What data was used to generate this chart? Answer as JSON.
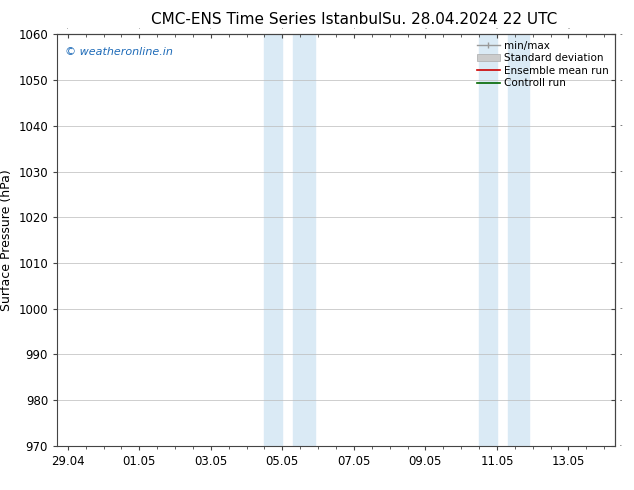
{
  "title": "CMC-ENS Time Series Istanbul",
  "title2": "Su. 28.04.2024 22 UTC",
  "ylabel": "Surface Pressure (hPa)",
  "ylim": [
    970,
    1060
  ],
  "yticks": [
    970,
    980,
    990,
    1000,
    1010,
    1020,
    1030,
    1040,
    1050,
    1060
  ],
  "x_tick_labels": [
    "29.04",
    "01.05",
    "03.05",
    "05.05",
    "07.05",
    "09.05",
    "11.05",
    "13.05"
  ],
  "x_tick_positions": [
    0,
    2,
    4,
    6,
    8,
    10,
    12,
    14
  ],
  "xlim": [
    -0.3,
    15.3
  ],
  "shaded_bands": [
    {
      "x_start": 5.5,
      "x_end": 6.0
    },
    {
      "x_start": 6.3,
      "x_end": 6.9
    },
    {
      "x_start": 11.5,
      "x_end": 12.0
    },
    {
      "x_start": 12.3,
      "x_end": 12.9
    }
  ],
  "shaded_color": "#daeaf5",
  "watermark_text": "© weatheronline.in",
  "watermark_color": "#1e6bb8",
  "legend_items": [
    {
      "label": "min/max",
      "color": "#aaaaaa",
      "type": "errorbar"
    },
    {
      "label": "Standard deviation",
      "color": "#cccccc",
      "type": "fill"
    },
    {
      "label": "Ensemble mean run",
      "color": "#cc0000",
      "type": "line"
    },
    {
      "label": "Controll run",
      "color": "#006600",
      "type": "line"
    }
  ],
  "bg_color": "#ffffff",
  "grid_color": "#bbbbbb",
  "font_color": "#000000",
  "title_fontsize": 11,
  "axis_fontsize": 9,
  "tick_fontsize": 8.5,
  "legend_fontsize": 7.5
}
